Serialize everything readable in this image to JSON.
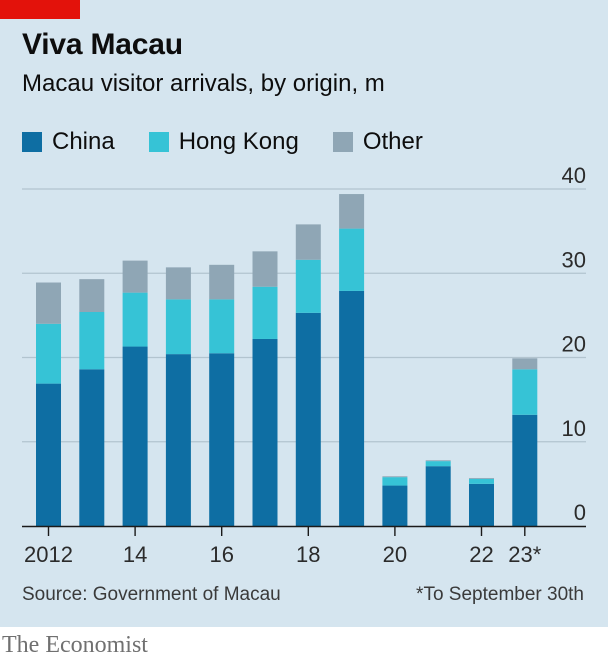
{
  "header": {
    "title": "Viva Macau",
    "subtitle": "Macau visitor arrivals, by origin, m"
  },
  "legend": [
    {
      "label": "China",
      "color": "#0e6ea3"
    },
    {
      "label": "Hong Kong",
      "color": "#36c3d6"
    },
    {
      "label": "Other",
      "color": "#8fa6b5"
    }
  ],
  "footer": {
    "source": "Source: Government of Macau",
    "note": "*To September 30th",
    "brand": "The Economist"
  },
  "chart_data": {
    "type": "bar",
    "stacked": true,
    "title": "Viva Macau",
    "subtitle": "Macau visitor arrivals, by origin, m",
    "categories": [
      "2012",
      "2013",
      "2014",
      "2015",
      "2016",
      "2017",
      "2018",
      "2019",
      "2020",
      "2021",
      "2022",
      "2023"
    ],
    "x_tick_labels": [
      "2012",
      "",
      "14",
      "",
      "16",
      "",
      "18",
      "",
      "20",
      "",
      "22",
      "23*"
    ],
    "series": [
      {
        "name": "China",
        "color": "#0e6ea3",
        "values": [
          16.9,
          18.6,
          21.3,
          20.4,
          20.5,
          22.2,
          25.3,
          27.9,
          4.8,
          7.1,
          5.0,
          13.2
        ]
      },
      {
        "name": "Hong Kong",
        "color": "#36c3d6",
        "values": [
          7.1,
          6.8,
          6.4,
          6.5,
          6.4,
          6.2,
          6.3,
          7.4,
          1.0,
          0.6,
          0.6,
          5.4
        ]
      },
      {
        "name": "Other",
        "color": "#8fa6b5",
        "values": [
          4.9,
          3.9,
          3.8,
          3.8,
          4.1,
          4.2,
          4.2,
          4.1,
          0.1,
          0.1,
          0.1,
          1.3
        ]
      }
    ],
    "ylim": [
      0,
      40
    ],
    "yticks": [
      0,
      10,
      20,
      30,
      40
    ],
    "y_axis_side": "right",
    "grid": true,
    "legend_position": "top-left"
  }
}
